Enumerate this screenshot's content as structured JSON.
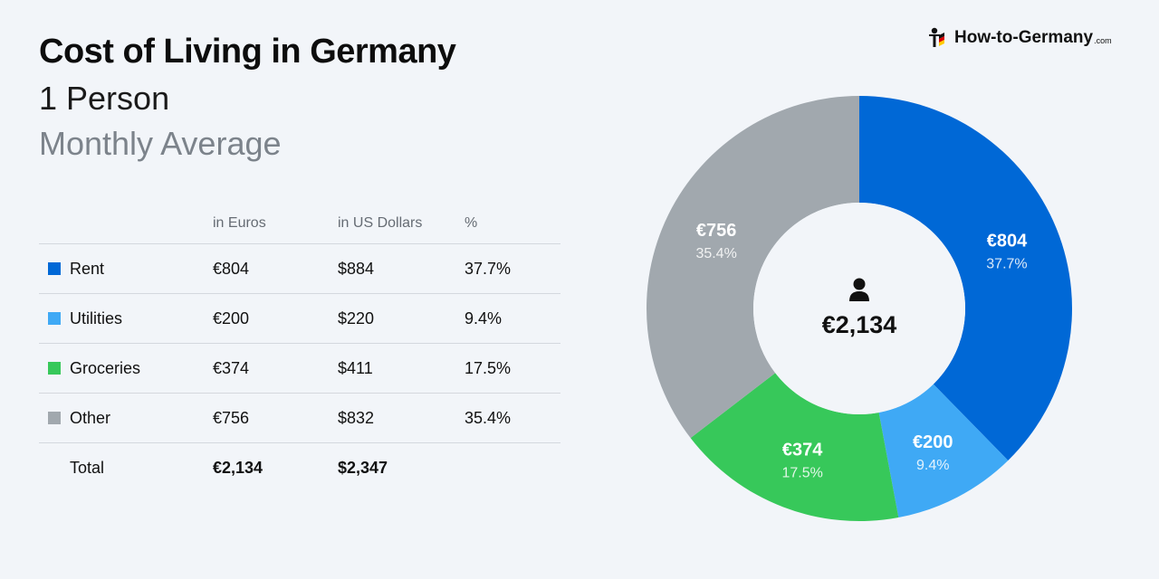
{
  "header": {
    "title": "Cost of Living in Germany",
    "subtitle": "1 Person",
    "subtitle2": "Monthly Average"
  },
  "brand": {
    "name": "How-to-Germany",
    "tld": ".com",
    "logo_icon": "person-flag-logo-icon"
  },
  "table": {
    "columns": [
      "",
      "in Euros",
      "in US Dollars",
      "%"
    ],
    "rows": [
      {
        "label": "Rent",
        "eur": "€804",
        "usd": "$884",
        "pct": "37.7%",
        "color": "#0068d6"
      },
      {
        "label": "Utilities",
        "eur": "€200",
        "usd": "$220",
        "pct": "9.4%",
        "color": "#3fa9f5"
      },
      {
        "label": "Groceries",
        "eur": "€374",
        "usd": "$411",
        "pct": "17.5%",
        "color": "#37c85a"
      },
      {
        "label": "Other",
        "eur": "€756",
        "usd": "$832",
        "pct": "35.4%",
        "color": "#a1a8ae"
      }
    ],
    "total": {
      "label": "Total",
      "eur": "€2,134",
      "usd": "$2,347"
    }
  },
  "chart_data": {
    "type": "pie",
    "donut": true,
    "title": "",
    "center_label": "€2,134",
    "center_icon": "person-icon",
    "slices": [
      {
        "name": "Rent",
        "value": 804,
        "value_label": "€804",
        "percent_label": "37.7%",
        "color": "#0068d6"
      },
      {
        "name": "Utilities",
        "value": 200,
        "value_label": "€200",
        "percent_label": "9.4%",
        "color": "#3fa9f5"
      },
      {
        "name": "Groceries",
        "value": 374,
        "value_label": "€374",
        "percent_label": "17.5%",
        "color": "#37c85a"
      },
      {
        "name": "Other",
        "value": 756,
        "value_label": "€756",
        "percent_label": "35.4%",
        "color": "#a1a8ae"
      }
    ]
  }
}
